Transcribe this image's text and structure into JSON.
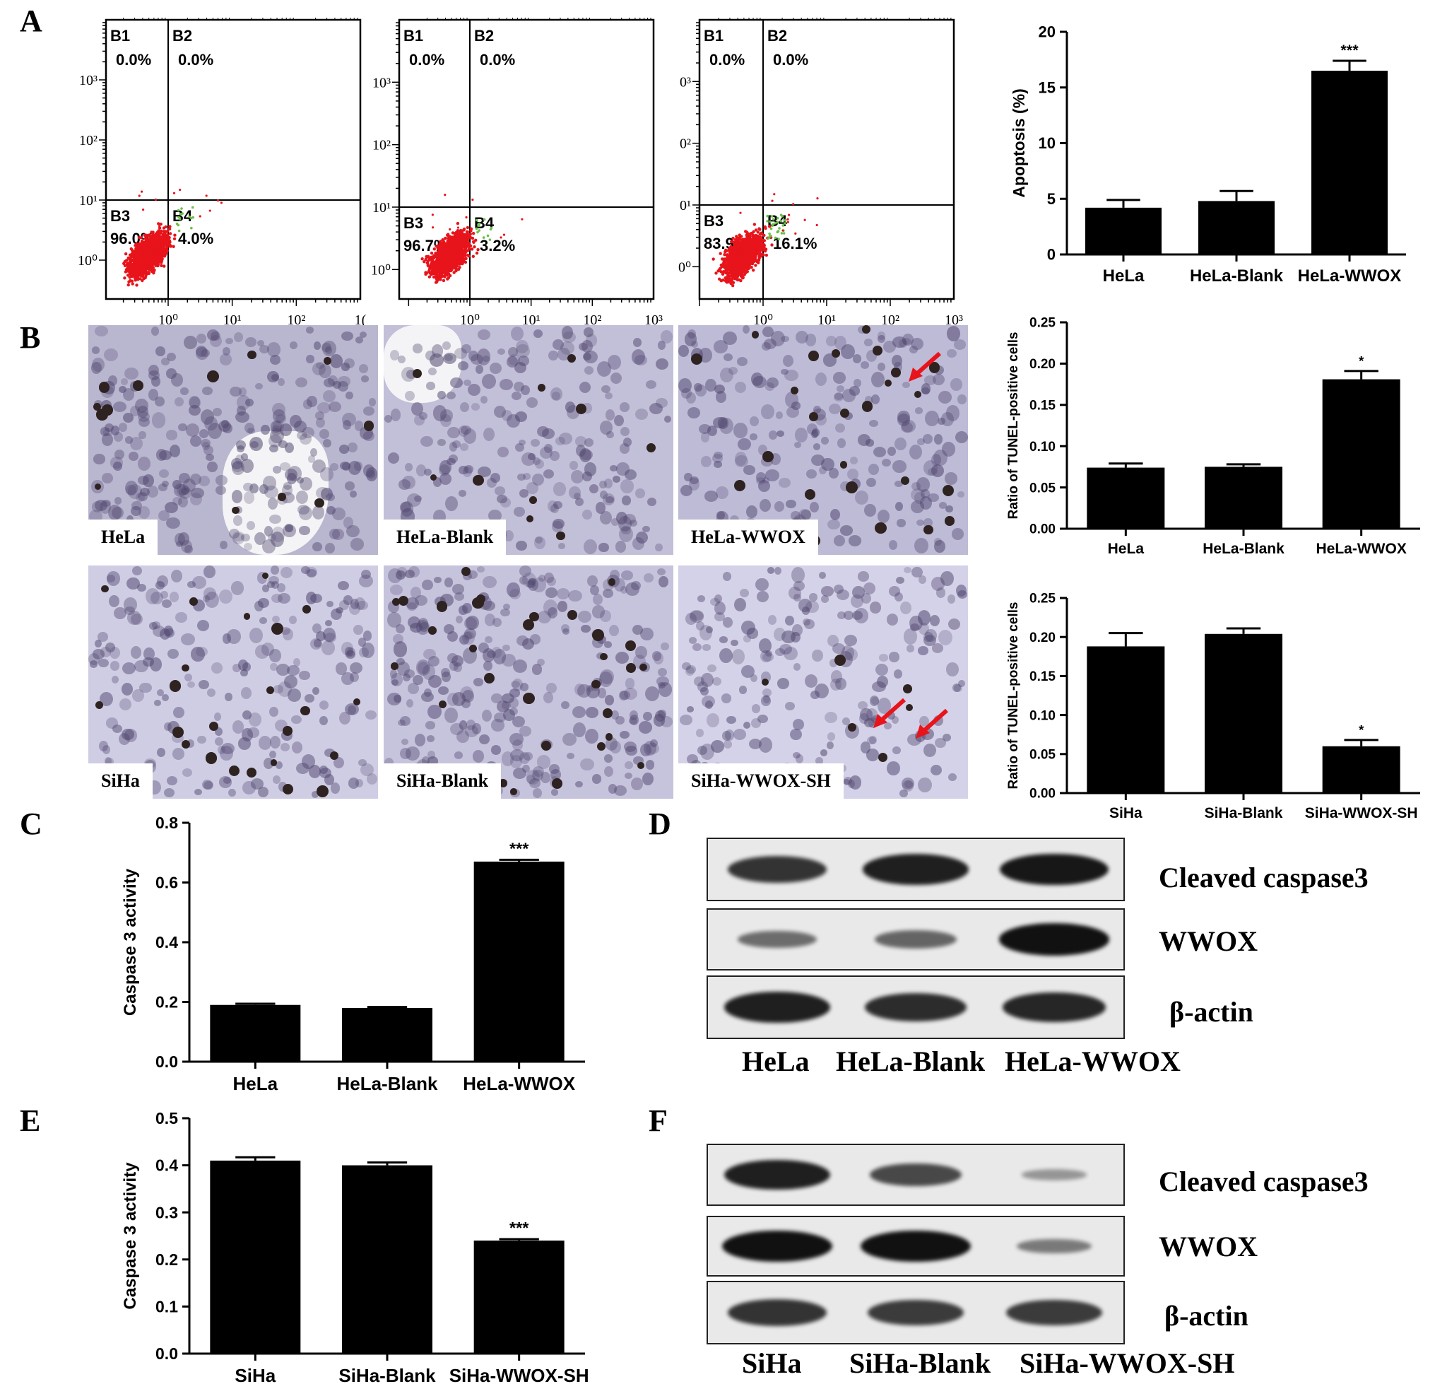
{
  "panel_letters": [
    "A",
    "B",
    "C",
    "D",
    "E",
    "F"
  ],
  "chart_data": [
    {
      "id": "A-flow-1",
      "type": "scatter",
      "quadrants": {
        "B1": "0.0%",
        "B2": "0.0%",
        "B3": "96.0%",
        "B4": "4.0%"
      },
      "x_ticks": [
        "10⁰",
        "10¹",
        "10²",
        "1("
      ],
      "y_ticks": [
        "10³",
        "10²",
        "10¹",
        "10⁰"
      ]
    },
    {
      "id": "A-flow-2",
      "type": "scatter",
      "quadrants": {
        "B1": "0.0%",
        "B2": "0.0%",
        "B3": "96.7%",
        "B4": "3.2%"
      },
      "x_ticks": [
        "10⁰",
        "10¹",
        "10²",
        "10³"
      ],
      "y_ticks": [
        "10³",
        "10²",
        "10¹",
        "10⁰"
      ]
    },
    {
      "id": "A-flow-3",
      "type": "scatter",
      "quadrants": {
        "B1": "0.0%",
        "B2": "0.0%",
        "B3": "83.9%",
        "B4": "16.1%"
      },
      "x_ticks": [
        "10⁰",
        "10¹",
        "10²",
        "10³"
      ],
      "y_ticks": [
        "0³",
        "0²",
        "0¹",
        "0⁰"
      ]
    },
    {
      "id": "A-apoptosis",
      "type": "bar",
      "categories": [
        "HeLa",
        "HeLa-Blank",
        "HeLa-WWOX"
      ],
      "values": [
        4.2,
        4.8,
        16.5
      ],
      "errors": [
        0.7,
        0.9,
        0.9
      ],
      "annotations": [
        "",
        "",
        "***"
      ],
      "ylabel": "Apoptosis (%)",
      "ylim": [
        0,
        20
      ],
      "yticks": [
        0,
        5,
        10,
        15,
        20
      ]
    },
    {
      "id": "B-tunel-hela",
      "type": "bar",
      "categories": [
        "HeLa",
        "HeLa-Blank",
        "HeLa-WWOX"
      ],
      "values": [
        0.074,
        0.075,
        0.181
      ],
      "errors": [
        0.005,
        0.003,
        0.01
      ],
      "annotations": [
        "",
        "",
        "*"
      ],
      "ylabel": "Ratio of TUNEL-positive cells",
      "ylim": [
        0,
        0.25
      ],
      "yticks": [
        "0.00",
        "0.05",
        "0.10",
        "0.15",
        "0.20",
        "0.25"
      ]
    },
    {
      "id": "B-tunel-siha",
      "type": "bar",
      "categories": [
        "SiHa",
        "SiHa-Blank",
        "SiHa-WWOX-SH"
      ],
      "values": [
        0.188,
        0.204,
        0.06
      ],
      "errors": [
        0.017,
        0.007,
        0.008
      ],
      "annotations": [
        "",
        "",
        "*"
      ],
      "ylabel": "Ratio of TUNEL-positive cells",
      "ylim": [
        0,
        0.25
      ],
      "yticks": [
        "0.00",
        "0.05",
        "0.10",
        "0.15",
        "0.20",
        "0.25"
      ]
    },
    {
      "id": "C-caspase-hela",
      "type": "bar",
      "categories": [
        "HeLa",
        "HeLa-Blank",
        "HeLa-WWOX"
      ],
      "values": [
        0.19,
        0.18,
        0.67
      ],
      "errors": [
        0.004,
        0.003,
        0.006
      ],
      "annotations": [
        "",
        "",
        "***"
      ],
      "ylabel": "Caspase 3 activity",
      "ylim": [
        0,
        0.8
      ],
      "yticks": [
        "0.0",
        "0.2",
        "0.4",
        "0.6",
        "0.8"
      ]
    },
    {
      "id": "E-caspase-siha",
      "type": "bar",
      "categories": [
        "SiHa",
        "SiHa-Blank",
        "SiHa-WWOX-SH"
      ],
      "values": [
        0.41,
        0.4,
        0.24
      ],
      "errors": [
        0.007,
        0.006,
        0.003
      ],
      "annotations": [
        "",
        "",
        "***"
      ],
      "ylabel": "Caspase 3 activity",
      "ylim": [
        0,
        0.5
      ],
      "yticks": [
        "0.0",
        "0.1",
        "0.2",
        "0.3",
        "0.4",
        "0.5"
      ]
    }
  ],
  "micrographs": [
    {
      "caption": "HeLa",
      "tint": "#b9b6cf"
    },
    {
      "caption": "HeLa-Blank",
      "tint": "#c2bfd8"
    },
    {
      "caption": "HeLa-WWOX",
      "tint": "#bdbbd6"
    },
    {
      "caption": "SiHa",
      "tint": "#cfcde4"
    },
    {
      "caption": "SiHa-Blank",
      "tint": "#c6c3dc"
    },
    {
      "caption": "SiHa-WWOX-SH",
      "tint": "#d4d2e8"
    }
  ],
  "western_D": {
    "rows": [
      "Cleaved caspase3",
      "WWOX",
      "β-actin"
    ],
    "lanes": [
      "HeLa",
      "HeLa-Blank",
      "HeLa-WWOX"
    ],
    "intensities": [
      [
        0.75,
        0.9,
        0.95
      ],
      [
        0.35,
        0.4,
        1.0
      ],
      [
        0.9,
        0.8,
        0.85
      ]
    ]
  },
  "western_F": {
    "rows": [
      "Cleaved caspase3",
      "WWOX",
      "β-actin"
    ],
    "lanes": [
      "SiHa",
      "SiHa-Blank",
      "SiHa-WWOX-SH"
    ],
    "intensities": [
      [
        0.9,
        0.6,
        0.05
      ],
      [
        1.0,
        1.0,
        0.25
      ],
      [
        0.75,
        0.7,
        0.7
      ]
    ]
  },
  "colors": {
    "bar": "#000000",
    "dots": "#e8141b",
    "dots_shoulder": "#6cc04a",
    "arrow": "#e8141b",
    "cell_dark": "#2e2320"
  }
}
